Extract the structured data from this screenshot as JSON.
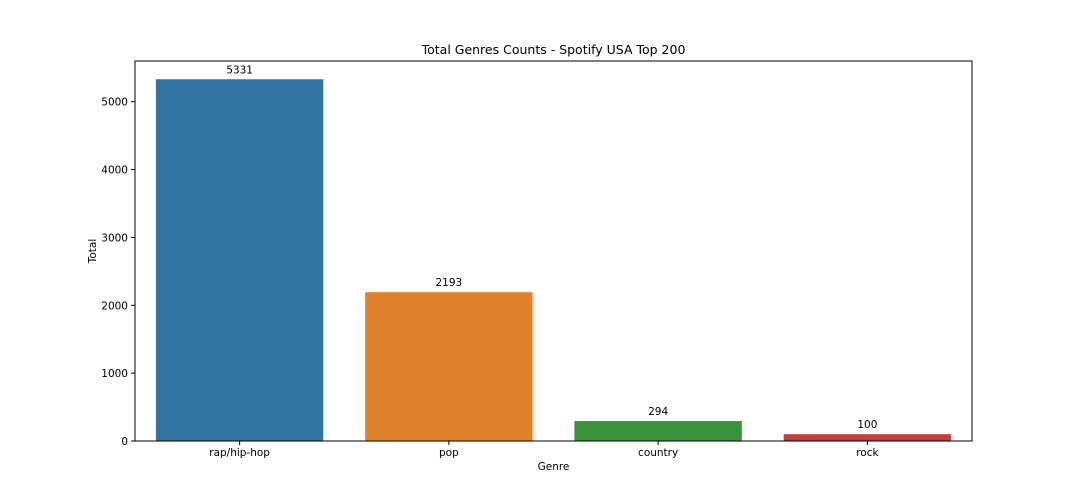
{
  "chart_data": {
    "type": "bar",
    "title": "Total Genres Counts - Spotify USA Top 200",
    "xlabel": "Genre",
    "ylabel": "Total",
    "categories": [
      "rap/hip-hop",
      "pop",
      "country",
      "rock"
    ],
    "values": [
      5331,
      2193,
      294,
      100
    ],
    "data_labels": [
      "5331",
      "2193",
      "294",
      "100"
    ],
    "colors": [
      "#3274a1",
      "#e1812c",
      "#3a923a",
      "#c03d3e"
    ],
    "ylim": [
      0,
      5600
    ],
    "yticks": [
      0,
      1000,
      2000,
      3000,
      4000,
      5000
    ],
    "grid": false,
    "legend": "none"
  }
}
